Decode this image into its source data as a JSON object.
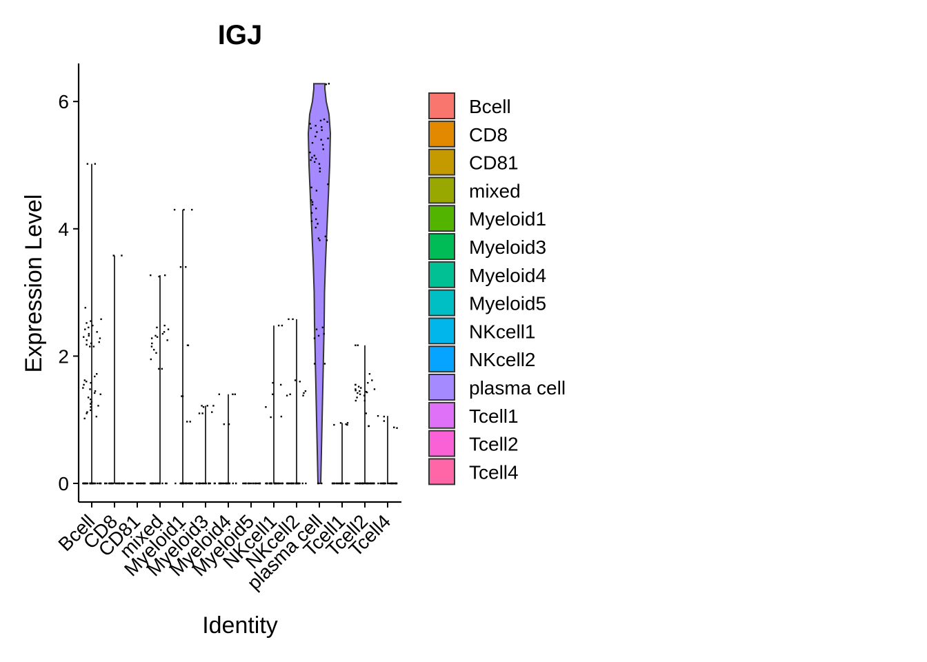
{
  "chart_data": {
    "type": "violin",
    "title": "IGJ",
    "xlabel": "Identity",
    "ylabel": "Expression Level",
    "ylim": [
      -0.3,
      6.6
    ],
    "yticks": [
      0,
      2,
      4,
      6
    ],
    "grid": false,
    "legend_position": "right",
    "categories": [
      "Bcell",
      "CD8",
      "CD81",
      "mixed",
      "Myeloid1",
      "Myeloid3",
      "Myeloid4",
      "Myeloid5",
      "NKcell1",
      "NKcell2",
      "plasma cell",
      "Tcell1",
      "Tcell2",
      "Tcell4"
    ],
    "colors": [
      "#F8766D",
      "#E38900",
      "#C49A00",
      "#99A800",
      "#53B400",
      "#00BC56",
      "#00C094",
      "#00BFC4",
      "#00B6EB",
      "#06A4FF",
      "#A58AFF",
      "#DF70F8",
      "#FB61D7",
      "#FF66A8"
    ],
    "series": [
      {
        "name": "Bcell",
        "max": 5.02,
        "values": [
          0,
          0,
          0,
          0,
          0,
          0,
          0,
          0,
          0,
          0,
          0,
          0,
          0,
          0,
          0,
          0,
          0,
          0,
          0,
          0,
          0,
          0,
          0,
          0,
          0,
          0,
          0,
          0,
          0,
          0,
          5.02,
          5.02,
          2.76,
          2.58,
          2.55,
          2.52,
          2.48,
          2.45,
          2.42,
          2.38,
          2.35,
          2.32,
          2.3,
          2.28,
          2.25,
          2.22,
          2.2,
          2.18,
          2.15,
          2.15,
          1.72,
          1.68,
          1.62,
          1.6,
          1.58,
          1.55,
          1.5,
          1.48,
          1.45,
          1.42,
          1.4,
          1.35,
          1.32,
          1.28,
          1.25,
          1.22,
          1.2,
          1.15,
          1.12,
          1.1,
          1.05,
          1.02
        ]
      },
      {
        "name": "CD8",
        "max": 3.58,
        "values": [
          0,
          0,
          0,
          0,
          0,
          0,
          0,
          0,
          0,
          0,
          0,
          0,
          0,
          0,
          0,
          0,
          0,
          0,
          0,
          0,
          0,
          0,
          0,
          0,
          3.58,
          3.58
        ]
      },
      {
        "name": "CD81",
        "max": 0,
        "values": [
          0,
          0,
          0,
          0,
          0,
          0,
          0,
          0,
          0,
          0,
          0,
          0,
          0,
          0,
          0,
          0,
          0,
          0,
          0,
          0
        ]
      },
      {
        "name": "mixed",
        "max": 3.27,
        "values": [
          0,
          0,
          0,
          0,
          0,
          0,
          0,
          0,
          0,
          0,
          0,
          0,
          0,
          0,
          0,
          0,
          0,
          0,
          0,
          0,
          3.27,
          3.27,
          3.25,
          2.48,
          2.45,
          2.42,
          2.38,
          2.35,
          2.32,
          2.3,
          2.28,
          2.25,
          2.2,
          2.15,
          2.1,
          2.05,
          1.95,
          1.8,
          1.8
        ]
      },
      {
        "name": "Myeloid1",
        "max": 4.3,
        "values": [
          0,
          0,
          0,
          0,
          0,
          0,
          0,
          0,
          0,
          0,
          0,
          0,
          0,
          0,
          0,
          0,
          0,
          0,
          0,
          0,
          0,
          0,
          0,
          0,
          4.3,
          4.3,
          4.3,
          3.4,
          3.4,
          2.17,
          2.17,
          1.37,
          1.37,
          0.97,
          0.97
        ]
      },
      {
        "name": "Myeloid3",
        "max": 1.22,
        "values": [
          0,
          0,
          0,
          0,
          0,
          0,
          0,
          0,
          0,
          0,
          0,
          0,
          0,
          0,
          0,
          0,
          0,
          0,
          0,
          0,
          1.22,
          1.22,
          1.22,
          1.2,
          1.12,
          1.1,
          1.1
        ]
      },
      {
        "name": "Myeloid4",
        "max": 1.4,
        "values": [
          0,
          0,
          0,
          0,
          0,
          0,
          0,
          0,
          0,
          0,
          0,
          0,
          0,
          0,
          0,
          0,
          0,
          0,
          0,
          0,
          0,
          0,
          1.4,
          1.4,
          1.4,
          0.93,
          0.93
        ]
      },
      {
        "name": "Myeloid5",
        "max": 0,
        "values": [
          0,
          0,
          0,
          0,
          0,
          0,
          0,
          0,
          0,
          0,
          0,
          0,
          0,
          0,
          0,
          0,
          0,
          0
        ]
      },
      {
        "name": "NKcell1",
        "max": 2.48,
        "values": [
          0,
          0,
          0,
          0,
          0,
          0,
          0,
          0,
          0,
          0,
          0,
          0,
          0,
          0,
          0,
          0,
          0,
          0,
          0,
          0,
          0,
          0,
          0,
          0,
          0,
          0,
          0,
          0,
          0,
          0,
          2.48,
          2.48,
          1.58,
          1.55,
          1.4,
          1.2,
          1.05,
          1.04
        ]
      },
      {
        "name": "NKcell2",
        "max": 2.58,
        "values": [
          0,
          0,
          0,
          0,
          0,
          0,
          0,
          0,
          0,
          0,
          0,
          0,
          0,
          0,
          0,
          0,
          0,
          0,
          0,
          0,
          0,
          0,
          0,
          0,
          0,
          0,
          0,
          0,
          2.58,
          2.58,
          1.62,
          1.6,
          1.45,
          1.42,
          1.4,
          1.38,
          1.38
        ]
      },
      {
        "name": "plasma cell",
        "max": 6.28,
        "violin": true,
        "values": [
          6.28,
          6.27,
          5.72,
          5.7,
          5.68,
          5.65,
          5.62,
          5.6,
          5.58,
          5.55,
          5.52,
          5.45,
          5.42,
          5.4,
          5.35,
          5.32,
          5.25,
          5.2,
          5.15,
          5.12,
          5.1,
          5.08,
          5.05,
          5.02,
          4.95,
          4.9,
          4.7,
          4.65,
          4.6,
          4.45,
          4.42,
          4.38,
          4.32,
          4.25,
          4.15,
          4.12,
          4.08,
          4.02,
          3.88,
          3.85,
          3.82,
          3.82,
          2.45,
          2.42,
          2.35,
          2.32,
          2.28,
          1.88,
          1.88,
          0,
          0,
          0
        ]
      },
      {
        "name": "Tcell1",
        "max": 0.95,
        "values": [
          0,
          0,
          0,
          0,
          0,
          0,
          0,
          0,
          0,
          0,
          0,
          0,
          0,
          0,
          0,
          0,
          0,
          0,
          0,
          0,
          0,
          0,
          0,
          0,
          0.95,
          0.95,
          0.93,
          0.92,
          0.92
        ]
      },
      {
        "name": "Tcell2",
        "max": 2.17,
        "values": [
          0,
          0,
          0,
          0,
          0,
          0,
          0,
          0,
          0,
          0,
          0,
          0,
          0,
          0,
          0,
          0,
          0,
          0,
          0,
          0,
          0,
          0,
          0,
          0,
          0,
          0,
          0,
          0,
          0,
          0,
          0,
          0,
          0,
          0,
          0,
          0,
          2.17,
          2.17,
          1.72,
          1.62,
          1.58,
          1.55,
          1.55,
          1.52,
          1.5,
          1.48,
          1.48,
          1.46,
          1.45,
          1.44,
          1.43,
          1.42,
          1.4,
          1.38,
          1.35,
          1.3,
          1.3,
          1.1,
          0.9,
          0.9
        ]
      },
      {
        "name": "Tcell4",
        "max": 1.06,
        "values": [
          0,
          0,
          0,
          0,
          0,
          0,
          0,
          0,
          0,
          0,
          0,
          0,
          0,
          0,
          0,
          0,
          0,
          0,
          0,
          0,
          0,
          0,
          0,
          0,
          0,
          1.06,
          1.05,
          0.98,
          0.88,
          0.87
        ]
      }
    ]
  }
}
